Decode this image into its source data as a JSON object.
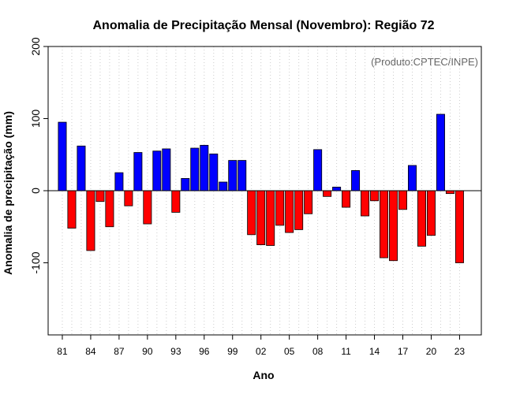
{
  "chart_data": {
    "type": "bar",
    "title": "Anomalia de Precipitação Mensal (Novembro): Região 72",
    "xlabel": "Ano",
    "ylabel": "Anomalia de precipitação (mm)",
    "annotation": "(Produto:CPTEC/INPE)",
    "ylim": [
      -200,
      200
    ],
    "yticks": [
      -100,
      0,
      100,
      200
    ],
    "ytick_labels": [
      "-100",
      "0",
      "100",
      "200"
    ],
    "xtick_labels": [
      "81",
      "84",
      "87",
      "90",
      "93",
      "96",
      "99",
      "02",
      "05",
      "08",
      "11",
      "14",
      "17",
      "20",
      "23"
    ],
    "xtick_positions": [
      1981,
      1984,
      1987,
      1990,
      1993,
      1996,
      1999,
      2002,
      2005,
      2008,
      2011,
      2014,
      2017,
      2020,
      2023
    ],
    "xlim": [
      1979.5,
      2025.3
    ],
    "grid": "vertical dotted, one line per year",
    "colors": {
      "positive": "#0000ff",
      "negative": "#ff0000",
      "zero_line": "#000000",
      "grid": "#cccccc"
    },
    "x": [
      1981,
      1982,
      1983,
      1984,
      1985,
      1986,
      1987,
      1988,
      1989,
      1990,
      1991,
      1992,
      1993,
      1994,
      1995,
      1996,
      1997,
      1998,
      1999,
      2000,
      2001,
      2002,
      2003,
      2004,
      2005,
      2006,
      2007,
      2008,
      2009,
      2010,
      2011,
      2012,
      2013,
      2014,
      2015,
      2016,
      2017,
      2018,
      2019,
      2020,
      2021,
      2022,
      2023
    ],
    "values": [
      95,
      -52,
      62,
      -83,
      -15,
      -50,
      25,
      -21,
      53,
      -46,
      55,
      58,
      -30,
      17,
      59,
      63,
      51,
      12,
      42,
      42,
      -61,
      -75,
      -76,
      -48,
      -58,
      -54,
      -32,
      57,
      -8,
      5,
      -23,
      28,
      -35,
      -14,
      -93,
      -97,
      -26,
      35,
      -77,
      -62,
      106,
      -4,
      -100
    ]
  }
}
